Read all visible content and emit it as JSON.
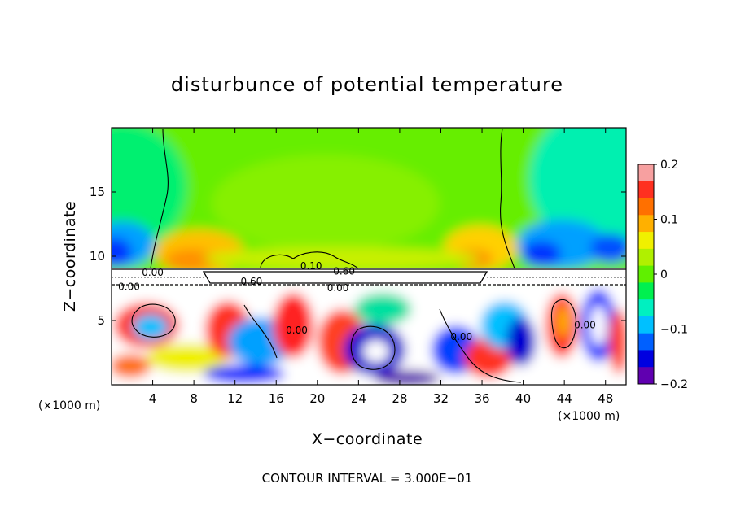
{
  "chart_data": {
    "type": "heatmap",
    "title": "disturbunce of potential temperature",
    "xlabel": "X−coordinate",
    "ylabel": "Z−coordinate",
    "x_unit_left": "(×1000 m)",
    "x_unit_right": "(×1000 m)",
    "footer": "CONTOUR INTERVAL = 3.000E−01",
    "xlim": [
      0,
      50
    ],
    "ylim": [
      0,
      20
    ],
    "xticks": [
      4,
      8,
      12,
      16,
      20,
      24,
      28,
      32,
      36,
      40,
      44,
      48
    ],
    "yticks": [
      5,
      10,
      15
    ],
    "colorbar": {
      "min": -0.2,
      "max": 0.2,
      "tick_values": [
        0.2,
        0.1,
        0,
        -0.1,
        -0.2
      ],
      "tick_labels": [
        "0.2",
        "0.1",
        "0",
        "−0.1",
        "−0.2"
      ],
      "colors": [
        "#f7a0a0",
        "#ff3020",
        "#ff7000",
        "#ffb000",
        "#f0f000",
        "#b0f000",
        "#60f000",
        "#00f050",
        "#00f0c0",
        "#00c0ff",
        "#0060ff",
        "#0000e0",
        "#6000b0"
      ]
    },
    "contour_labels": [
      {
        "text": "0.00",
        "x": 4.0,
        "y": 8.8
      },
      {
        "text": "0.00",
        "x": 1.7,
        "y": 7.7
      },
      {
        "text": "0.60",
        "x": 13.6,
        "y": 8.1
      },
      {
        "text": "0.10",
        "x": 19.4,
        "y": 9.3
      },
      {
        "text": "0.60",
        "x": 22.6,
        "y": 8.9
      },
      {
        "text": "0.00",
        "x": 22.0,
        "y": 7.6
      },
      {
        "text": "0.00",
        "x": 18.0,
        "y": 4.3
      },
      {
        "text": "0.00",
        "x": 34.0,
        "y": 3.8
      },
      {
        "text": "0.00",
        "x": 46.0,
        "y": 4.7
      }
    ]
  }
}
